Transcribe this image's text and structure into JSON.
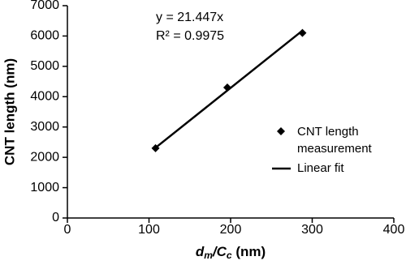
{
  "chart_data": {
    "type": "scatter",
    "x_label_parts": [
      "d",
      "m",
      "/C",
      "c",
      " (nm)"
    ],
    "y_label": "CNT length (nm)",
    "annotations": [
      "y = 21.447x",
      "R² = 0.9975"
    ],
    "xlim": [
      0,
      400
    ],
    "xticks": [
      0,
      100,
      200,
      300,
      400
    ],
    "ylim": [
      0,
      7000
    ],
    "yticks": [
      0,
      1000,
      2000,
      3000,
      4000,
      5000,
      6000,
      7000
    ],
    "grid": false,
    "series": [
      {
        "name": "CNT length measurement",
        "color": "#000000",
        "mode": "markers",
        "x": [
          108,
          196,
          288
        ],
        "values": [
          2300,
          4300,
          6100
        ]
      },
      {
        "name": "Linear fit",
        "color": "#000000",
        "mode": "line",
        "x": [
          108,
          288
        ],
        "values": [
          2316,
          6177
        ]
      }
    ]
  }
}
